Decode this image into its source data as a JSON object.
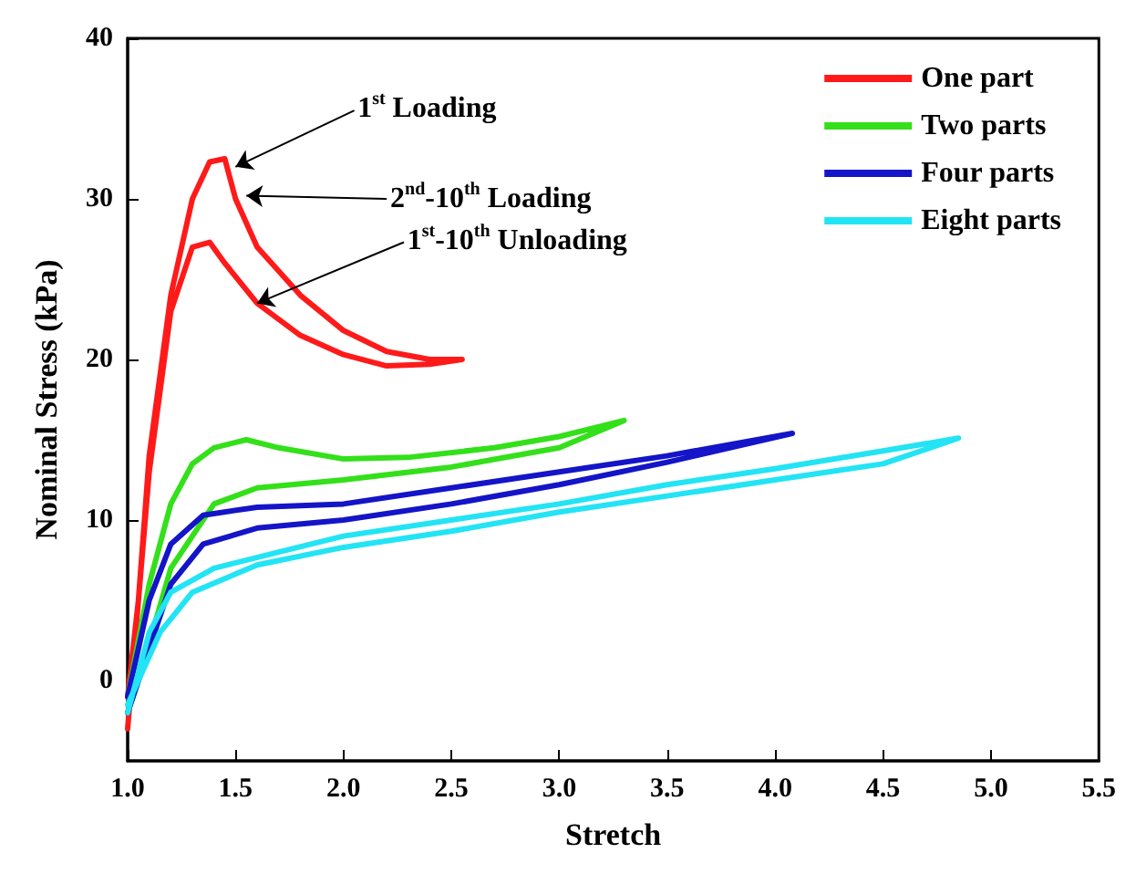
{
  "chart_data": {
    "type": "line",
    "xlabel": "Stretch",
    "ylabel": "Nominal Stress (kPa)",
    "xlim": [
      1.0,
      5.5
    ],
    "xticks": [
      {
        "value": 1,
        "label": "1.0"
      },
      1.5,
      {
        "value": 2,
        "label": "2.0"
      },
      2.5,
      {
        "value": 3,
        "label": "3.0"
      },
      3.5,
      {
        "value": 4,
        "label": "4.0"
      },
      4.5,
      {
        "value": 5,
        "label": "5.0"
      },
      5.5
    ],
    "ylim": [
      -5,
      40
    ],
    "yticks": [
      0,
      10,
      20,
      30,
      40
    ],
    "grid": false,
    "legend": "top right",
    "marker": "none",
    "line_style": "solid",
    "series": [
      {
        "name": "One part",
        "color": "#ff1a1a",
        "x": [
          1.0,
          1.05,
          1.1,
          1.2,
          1.3,
          1.38,
          1.45,
          1.5,
          1.6,
          1.8,
          2.0,
          2.2,
          2.4,
          2.55,
          2.4,
          2.2,
          2.0,
          1.8,
          1.6,
          1.45,
          1.38,
          1.3,
          1.2,
          1.1,
          1.05,
          1.0
        ],
        "values": [
          -3,
          5,
          14,
          24,
          30,
          32.3,
          32.5,
          30,
          27,
          24,
          21.8,
          20.5,
          20,
          20,
          19.7,
          19.6,
          20.3,
          21.5,
          23.5,
          26,
          27.3,
          27,
          23,
          13,
          5,
          -1
        ]
      },
      {
        "name": "Two parts",
        "color": "#33e01a",
        "x": [
          1.0,
          1.1,
          1.2,
          1.3,
          1.4,
          1.55,
          1.7,
          2.0,
          2.3,
          2.7,
          3.0,
          3.3,
          3.0,
          2.5,
          2.0,
          1.6,
          1.4,
          1.2,
          1.05,
          1.0
        ],
        "values": [
          -1,
          6,
          11,
          13.5,
          14.5,
          15,
          14.5,
          13.8,
          13.9,
          14.5,
          15.2,
          16.2,
          14.5,
          13.3,
          12.5,
          12,
          11,
          7,
          0,
          -2
        ]
      },
      {
        "name": "Four parts",
        "color": "#1414c8",
        "x": [
          1.0,
          1.1,
          1.2,
          1.35,
          1.6,
          2.0,
          2.5,
          3.0,
          3.5,
          4.08,
          3.5,
          3.0,
          2.5,
          2.0,
          1.6,
          1.35,
          1.2,
          1.05,
          1.0
        ],
        "values": [
          -1,
          5,
          8.5,
          10.3,
          10.8,
          11,
          12,
          13,
          14,
          15.4,
          13.6,
          12.2,
          11,
          10,
          9.5,
          8.5,
          6,
          0,
          -2
        ]
      },
      {
        "name": "Eight parts",
        "color": "#22e4f4",
        "x": [
          1.0,
          1.1,
          1.2,
          1.4,
          1.7,
          2.0,
          2.5,
          3.0,
          3.5,
          4.0,
          4.5,
          4.85,
          4.5,
          4.0,
          3.5,
          3.0,
          2.5,
          2.0,
          1.6,
          1.3,
          1.15,
          1.0
        ],
        "values": [
          -2,
          3,
          5.5,
          7,
          8,
          9,
          10,
          11,
          12.2,
          13.2,
          14.3,
          15.1,
          13.5,
          12.5,
          11.5,
          10.5,
          9.3,
          8.3,
          7.2,
          5.5,
          3,
          -1.5
        ]
      }
    ],
    "annotations": [
      {
        "text": "1$^{st}$ Loading",
        "x": 1.5,
        "y": 32
      },
      {
        "text": "2$^{nd}$-10$^{th}$ Loading",
        "x": 1.55,
        "y": 30.2
      },
      {
        "text": "1$^{st}$-10$^{th}$ Unloading",
        "x": 1.6,
        "y": 23.5
      }
    ]
  }
}
